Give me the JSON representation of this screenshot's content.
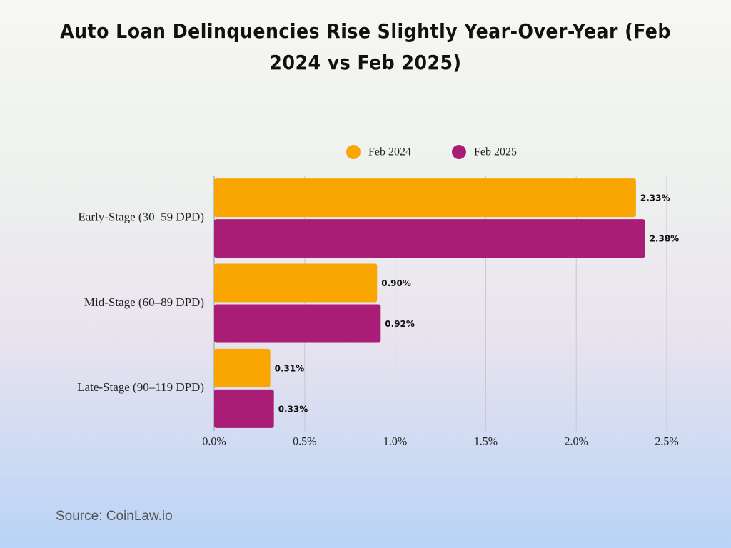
{
  "chart_data": {
    "type": "bar",
    "orientation": "horizontal",
    "title": "Auto Loan Delinquencies Rise Slightly Year-Over-Year (Feb 2024 vs Feb 2025)",
    "categories": [
      "Early-Stage (30–59 DPD)",
      "Mid-Stage (60–89 DPD)",
      "Late-Stage (90–119 DPD)"
    ],
    "series": [
      {
        "name": "Feb 2024",
        "color": "#f9a602",
        "values": [
          2.33,
          0.9,
          0.31
        ],
        "value_labels": [
          "2.33%",
          "0.90%",
          "0.31%"
        ]
      },
      {
        "name": "Feb 2025",
        "color": "#a91d77",
        "values": [
          2.38,
          0.92,
          0.33
        ],
        "value_labels": [
          "2.38%",
          "0.92%",
          "0.33%"
        ]
      }
    ],
    "xlim": [
      0,
      2.5
    ],
    "xticks": [
      {
        "value": 0,
        "label": "0.0%"
      },
      {
        "value": 0.5,
        "label": "0.5%"
      },
      {
        "value": 1,
        "label": "1.0%"
      },
      {
        "value": 1.5,
        "label": "1.5%"
      },
      {
        "value": 2,
        "label": "2.0%"
      },
      {
        "value": 2.5,
        "label": "2.5%"
      }
    ],
    "grid": true,
    "legend": "top",
    "source": "Source: CoinLaw.io"
  }
}
